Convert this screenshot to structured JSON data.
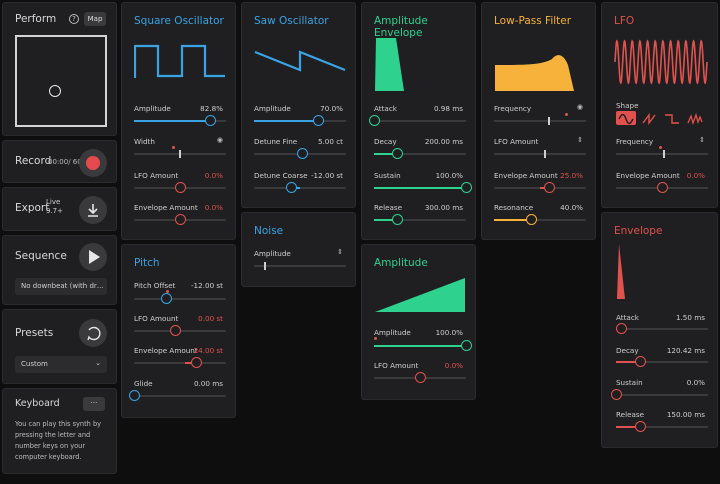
{
  "colors": {
    "blue": "#3aa3e3",
    "green": "#2fd18f",
    "yellow": "#f6b23a",
    "red": "#e0524e"
  },
  "perform": {
    "title": "Perform",
    "help": "?",
    "map": "Map"
  },
  "record": {
    "title": "Record",
    "time": "00:00",
    "limit": "/ 60"
  },
  "export": {
    "title": "Export",
    "badge_line1": "Live",
    "badge_line2": "9.7+"
  },
  "sequence": {
    "title": "Sequence",
    "select": "No downbeat (with dr…"
  },
  "presets": {
    "title": "Presets",
    "select": "Custom"
  },
  "keyboard": {
    "title": "Keyboard",
    "button": "···",
    "text": [
      "You can play this synth by",
      "pressing the letter and",
      "number keys on your",
      "computer keyboard."
    ]
  },
  "square": {
    "title": "Square Oscillator",
    "amplitude": {
      "label": "Amplitude",
      "value": "82.8%",
      "level": 0.828
    },
    "width": {
      "label": "Width",
      "level": 0.5
    },
    "lfo": {
      "label": "LFO Amount",
      "value": "0.0%",
      "level": 0.5
    },
    "env": {
      "label": "Envelope Amount",
      "value": "0.0%",
      "level": 0.5
    }
  },
  "saw": {
    "title": "Saw Oscillator",
    "amplitude": {
      "label": "Amplitude",
      "value": "70.0%",
      "level": 0.7
    },
    "fine": {
      "label": "Detune Fine",
      "value": "5.00 ct",
      "level": 0.52
    },
    "coarse": {
      "label": "Detune Coarse",
      "value": "-12.00 st",
      "level": 0.4
    }
  },
  "noise": {
    "title": "Noise",
    "amplitude": {
      "label": "Amplitude",
      "level": 0.12
    }
  },
  "pitch": {
    "title": "Pitch",
    "offset": {
      "label": "Pitch Offset",
      "value": "-12.00 st",
      "level": 0.35
    },
    "lfo": {
      "label": "LFO Amount",
      "value": "0.00 st",
      "level": 0.45
    },
    "env": {
      "label": "Envelope Amount",
      "value": "24.00 st",
      "level": 0.67
    },
    "glide": {
      "label": "Glide",
      "value": "0.00 ms",
      "level": 0.0
    }
  },
  "ampenv": {
    "title": "Amplitude Envelope",
    "attack": {
      "label": "Attack",
      "value": "0.98 ms",
      "level": 0.0
    },
    "decay": {
      "label": "Decay",
      "value": "200.00 ms",
      "level": 0.25
    },
    "sustain": {
      "label": "Sustain",
      "value": "100.0%",
      "level": 1.0
    },
    "release": {
      "label": "Release",
      "value": "300.00 ms",
      "level": 0.25
    }
  },
  "amplitude": {
    "title": "Amplitude",
    "amount": {
      "label": "Amplitude",
      "value": "100.0%",
      "level": 1.0
    },
    "lfo": {
      "label": "LFO Amount",
      "value": "0.0%",
      "level": 0.5
    }
  },
  "lpf": {
    "title": "Low-Pass Filter",
    "freq": {
      "label": "Frequency",
      "level": 0.6
    },
    "lfo": {
      "label": "LFO Amount",
      "level": 0.55
    },
    "env": {
      "label": "Envelope Amount",
      "value": "25.0%",
      "level": 0.6
    },
    "res": {
      "label": "Resonance",
      "value": "40.0%",
      "level": 0.4
    }
  },
  "lfo": {
    "title": "LFO",
    "shape_label": "Shape",
    "freq": {
      "label": "Frequency",
      "level": 0.52
    },
    "amount": {
      "label": "Envelope Amount",
      "value": "0.0%",
      "level": 0.5
    }
  },
  "envelope": {
    "title": "Envelope",
    "attack": {
      "label": "Attack",
      "value": "1.50 ms",
      "level": 0.05
    },
    "decay": {
      "label": "Decay",
      "value": "120.42 ms",
      "level": 0.26
    },
    "sustain": {
      "label": "Sustain",
      "value": "0.0%",
      "level": 0.0
    },
    "release": {
      "label": "Release",
      "value": "150.00 ms",
      "level": 0.26
    }
  }
}
